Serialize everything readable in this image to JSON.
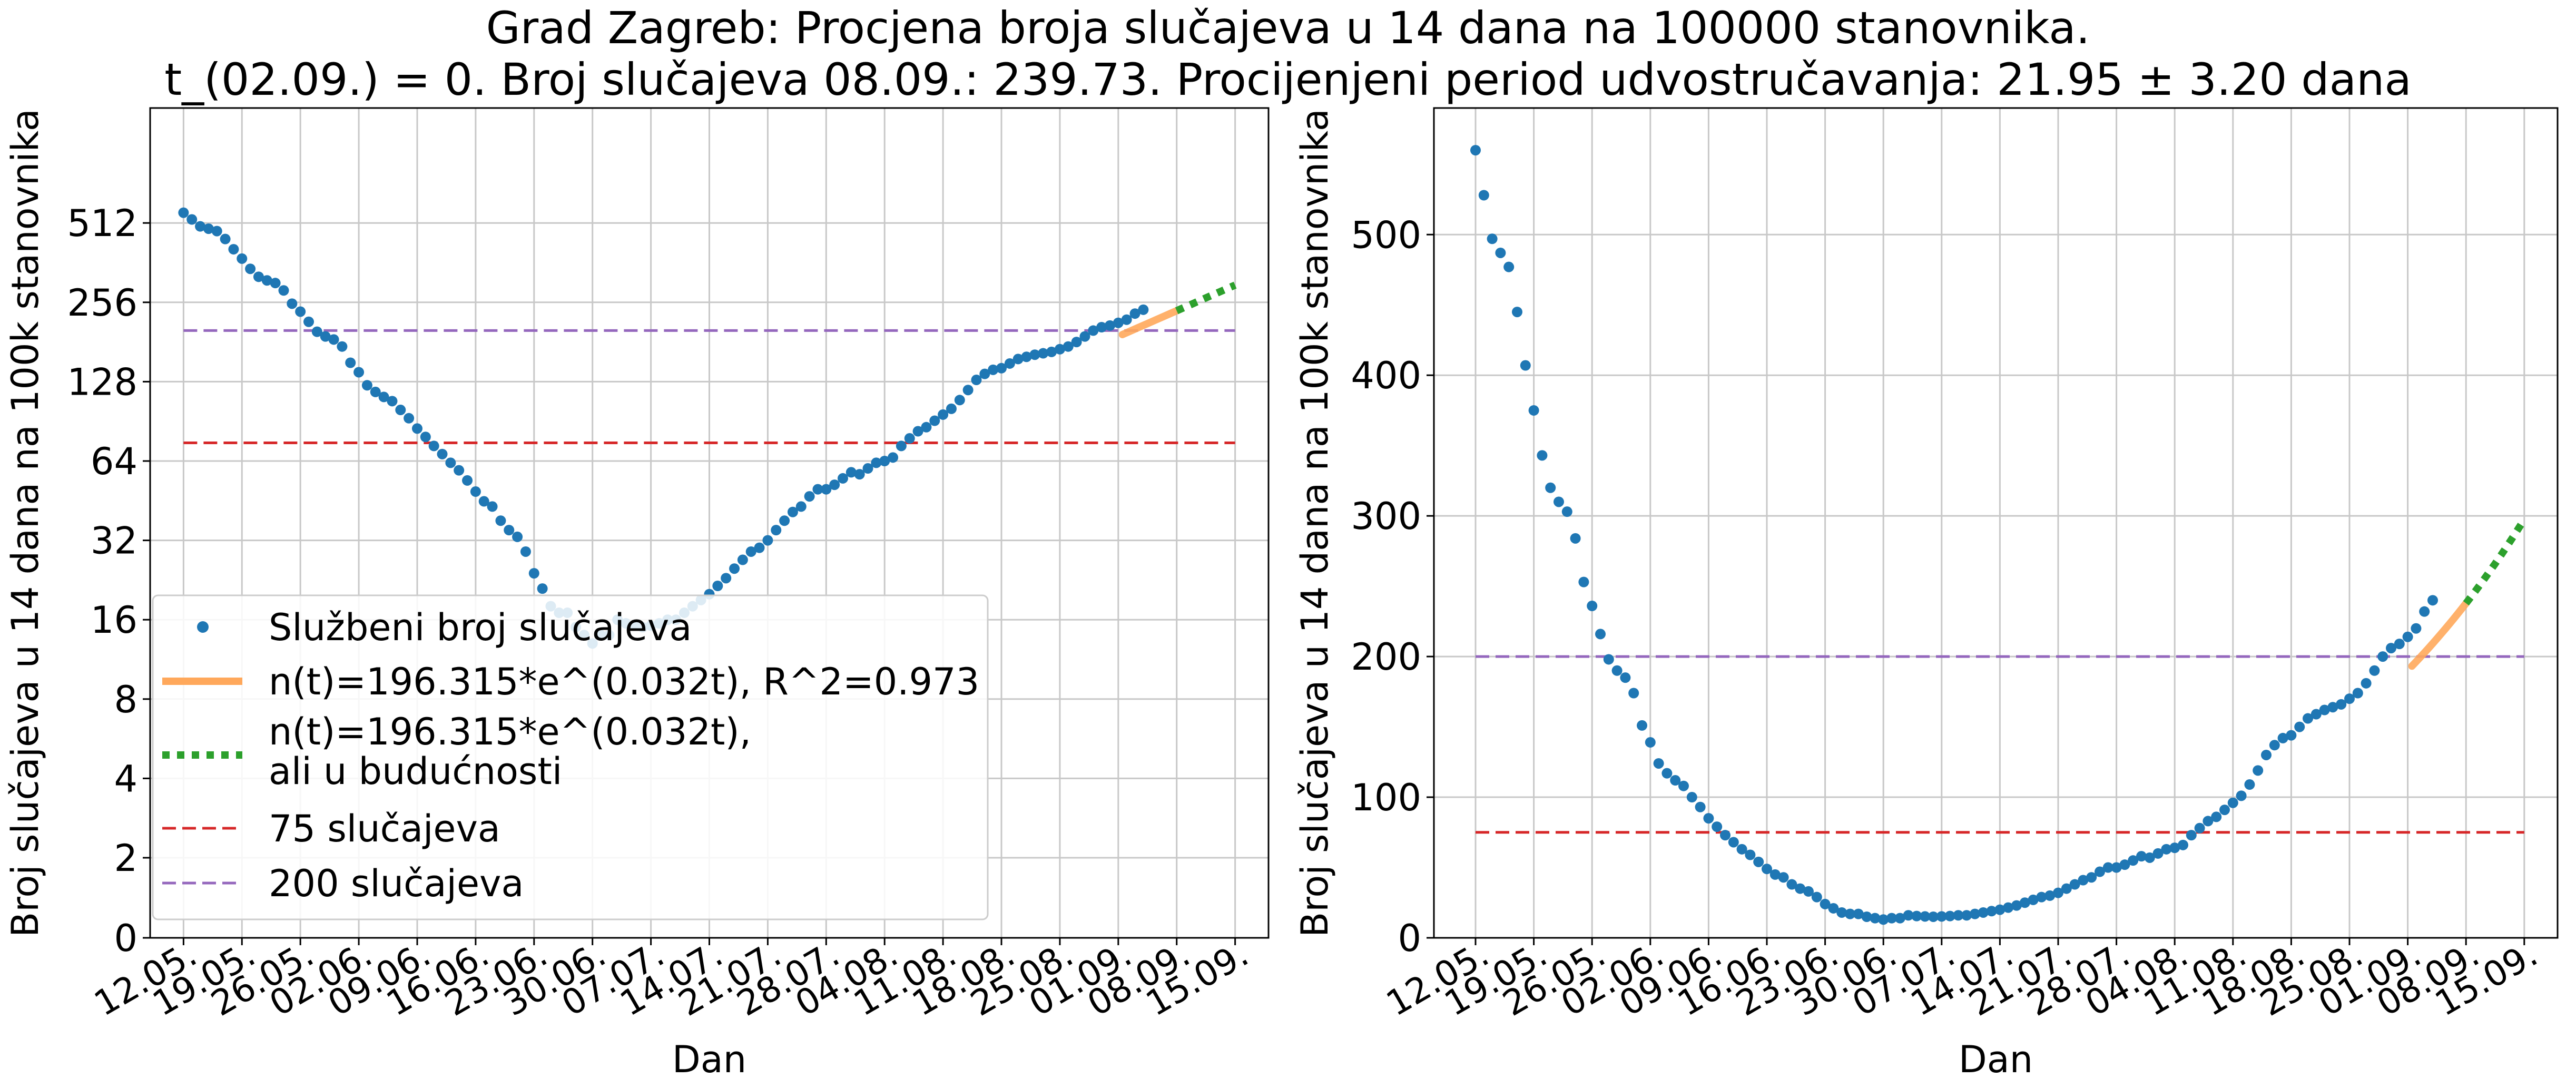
{
  "figure": {
    "title_line1": "Grad Zagreb: Procjena broja slučajeva u 14 dana na 100000 stanovnika.",
    "title_line2": "t_(02.09.) = 0. Broj slučajeva 08.09.: 239.73. Procijenjeni period udvostručavanja: 21.95 ± 3.20 dana"
  },
  "colors": {
    "points": "#1f77b4",
    "fit": "#ffa85b",
    "forecast": "#2ca02c",
    "line75": "#d62728",
    "line200": "#9467bd",
    "grid": "#c8c8c8"
  },
  "chart_data": [
    {
      "type": "scatter",
      "yscale": "log2",
      "xlabel": "Dan",
      "ylabel": "Broj slučajeva u 14 dana na 100k stanovnika",
      "x_tick_labels": [
        "12.05.",
        "19.05.",
        "26.05.",
        "02.06.",
        "09.06.",
        "16.06.",
        "23.06.",
        "30.06.",
        "07.07.",
        "14.07.",
        "21.07.",
        "28.07.",
        "04.08.",
        "11.08.",
        "18.08.",
        "25.08.",
        "01.09.",
        "08.09.",
        "15.09."
      ],
      "y_tick_labels": [
        "0",
        "2",
        "4",
        "8",
        "16",
        "32",
        "64",
        "128",
        "256",
        "512"
      ],
      "xlim": [
        "08.05.",
        "19.09."
      ],
      "grid": true,
      "legend_position": "lower-left",
      "legend": [
        {
          "label": "Službeni broj slučajeva",
          "kind": "dot"
        },
        {
          "label": "n(t)=196.315*e^(0.032t), R^2=0.973",
          "kind": "fit"
        },
        {
          "label": "n(t)=196.315*e^(0.032t),",
          "label2": "ali u budućnosti",
          "kind": "forecast"
        },
        {
          "label": "75 slučajeva",
          "kind": "line75"
        },
        {
          "label": "200 slučajeva",
          "kind": "line200"
        }
      ],
      "series": [
        {
          "name": "Službeni broj slučajeva",
          "kind": "scatter"
        },
        {
          "name": "n(t)=196.315*e^(0.032t), R^2=0.973",
          "kind": "fit",
          "x_range": [
            "02.09.",
            "08.09."
          ]
        },
        {
          "name": "n(t)=196.315*e^(0.032t), ali u budućnosti",
          "kind": "forecast",
          "x_range": [
            "08.09.",
            "15.09."
          ]
        },
        {
          "name": "75 slučajeva",
          "kind": "hline",
          "y": 75
        },
        {
          "name": "200 slučajeva",
          "kind": "hline",
          "y": 200
        }
      ]
    },
    {
      "type": "scatter",
      "yscale": "linear",
      "xlabel": "Dan",
      "ylabel": "Broj slučajeva u 14 dana na 100k stanovnika",
      "x_tick_labels": [
        "12.05.",
        "19.05.",
        "26.05.",
        "02.06.",
        "09.06.",
        "16.06.",
        "23.06.",
        "30.06.",
        "07.07.",
        "14.07.",
        "21.07.",
        "28.07.",
        "04.08.",
        "11.08.",
        "18.08.",
        "25.08.",
        "01.09.",
        "08.09.",
        "15.09."
      ],
      "y_tick_labels": [
        "0",
        "100",
        "200",
        "300",
        "400",
        "500"
      ],
      "ylim": [
        0,
        590
      ],
      "grid": true,
      "series": [
        {
          "name": "Službeni broj slučajeva",
          "kind": "scatter"
        },
        {
          "name": "n(t)=196.315*e^(0.032t), R^2=0.973",
          "kind": "fit"
        },
        {
          "name": "n(t)=196.315*e^(0.032t), ali u budućnosti",
          "kind": "forecast"
        },
        {
          "name": "75 slučajeva",
          "kind": "hline",
          "y": 75
        },
        {
          "name": "200 slučajeva",
          "kind": "hline",
          "y": 200
        }
      ]
    }
  ],
  "observations": {
    "start_date": "12.05.",
    "values": [
      560,
      528,
      497,
      487,
      477,
      445,
      407,
      375,
      343,
      320,
      310,
      303,
      284,
      253,
      236,
      216,
      198,
      190,
      185,
      174,
      151,
      139,
      124,
      117,
      112,
      108,
      100,
      93,
      85,
      79,
      73,
      68,
      63,
      59,
      54,
      49,
      45,
      43,
      38,
      35,
      33,
      29,
      24,
      21,
      18,
      17,
      17,
      15,
      14,
      13,
      14,
      14,
      16,
      15.5,
      15.2,
      15,
      15.2,
      15.5,
      16,
      16,
      17,
      18,
      19,
      20,
      21.5,
      23,
      25,
      27,
      29,
      30,
      32,
      35,
      38,
      41,
      43,
      47,
      50,
      50,
      52,
      55,
      58,
      57,
      60,
      63,
      64,
      66,
      73,
      78,
      83,
      86,
      91,
      96,
      101,
      109,
      119,
      130,
      137,
      142,
      144,
      150,
      156,
      159,
      162,
      164,
      166,
      170,
      174,
      181,
      190,
      200,
      206,
      209,
      214,
      220,
      232,
      240
    ]
  }
}
